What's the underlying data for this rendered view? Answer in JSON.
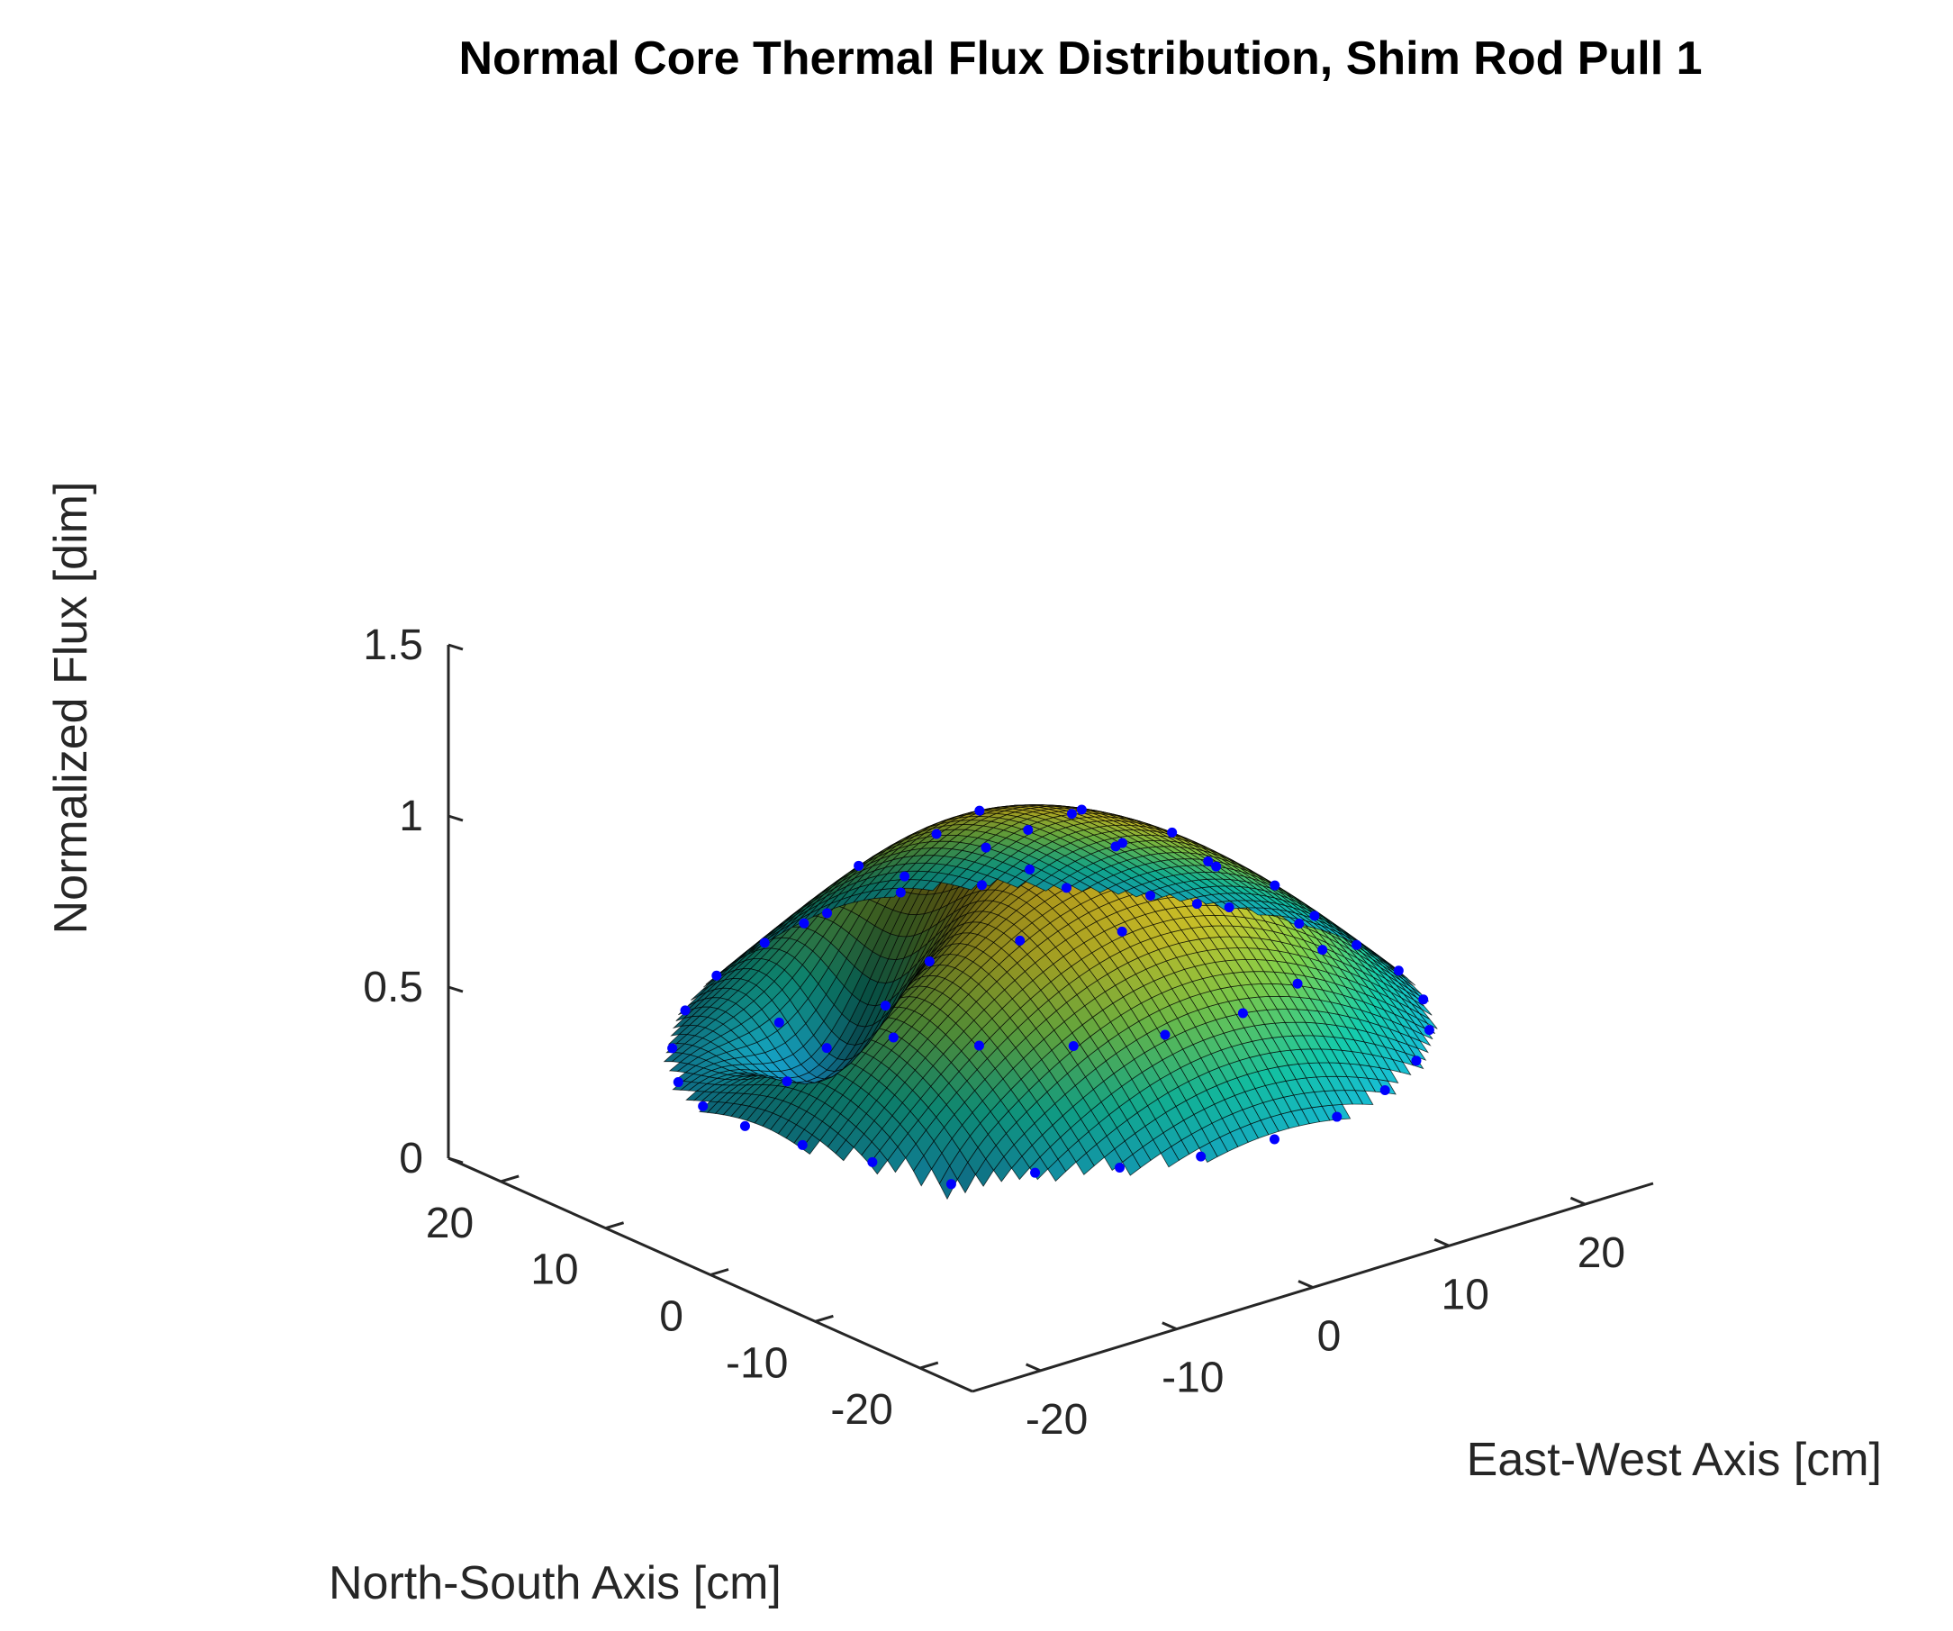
{
  "chart_data": {
    "type": "surface3d",
    "title": "Normal Core Thermal Flux Distribution, Shim Rod Pull 1",
    "xlabel": "East-West Axis [cm]",
    "ylabel": "North-South Axis [cm]",
    "zlabel": "Normalized Flux [dim]",
    "xlim": [
      -25,
      25
    ],
    "ylim": [
      -25,
      25
    ],
    "zlim": [
      0,
      1.5
    ],
    "x_ticks": [
      -20,
      -10,
      0,
      10,
      20
    ],
    "y_ticks": [
      -20,
      -10,
      0,
      10,
      20
    ],
    "z_ticks": [
      0,
      0.5,
      1,
      1.5
    ],
    "x_tick_labels": [
      "-20",
      "-10",
      "0",
      "10",
      "20"
    ],
    "y_tick_labels": [
      "-20",
      "-10",
      "0",
      "10",
      "20"
    ],
    "z_tick_labels": [
      "0",
      "0.5",
      "1",
      "1.5"
    ],
    "colormap": "parula",
    "marker_color": "#0000ff",
    "grid": false,
    "core_radius": 22.5,
    "peak_flux": 1.0,
    "edge_flux": 0.38,
    "rod_notch": {
      "x": -11,
      "y": 6,
      "depth": 0.42
    },
    "dip_location": {
      "x": -22,
      "y": -16,
      "min_flux": 0.0
    }
  }
}
